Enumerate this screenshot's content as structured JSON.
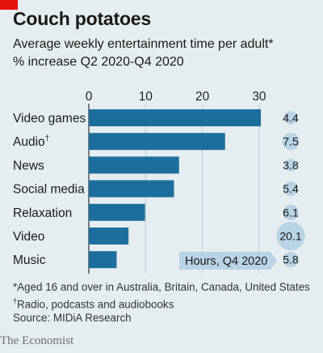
{
  "header": {
    "title": "Couch potatoes",
    "subtitle": "Average weekly entertainment time per adult*",
    "subtitle2": "% increase Q2 2020-Q4 2020"
  },
  "colors": {
    "bar": "#1c6f9c",
    "bubble": "#b7d3e5",
    "background": "#e6edf0",
    "accent_red": "#e3120b"
  },
  "chart_data": {
    "type": "bar",
    "orientation": "horizontal",
    "categories": [
      "Video games",
      "Audio",
      "News",
      "Social media",
      "Relaxation",
      "Video",
      "Music"
    ],
    "category_suffix": [
      "",
      "†",
      "",
      "",
      "",
      "",
      ""
    ],
    "values": [
      30.3,
      24.0,
      15.9,
      15.0,
      9.9,
      7.0,
      4.9
    ],
    "xlim": [
      0,
      32
    ],
    "xticks": [
      0,
      10,
      20,
      30
    ],
    "grid": true,
    "series": [
      {
        "name": "Hours, Q4 2020",
        "values": [
          30.3,
          24.0,
          15.9,
          15.0,
          9.9,
          7.0,
          4.9
        ]
      }
    ],
    "pct_increase": [
      4.4,
      7.5,
      3.8,
      5.4,
      6.1,
      20.1,
      5.8
    ],
    "legend_label": "Hours, Q4 2020"
  },
  "footer": {
    "note1": "*Aged 16 and over in Australia, Britain, Canada, United States",
    "note2_mark": "†",
    "note2": "Radio, podcasts and audiobooks",
    "source": "Source: MIDiA Research",
    "brand": "The Economist"
  }
}
